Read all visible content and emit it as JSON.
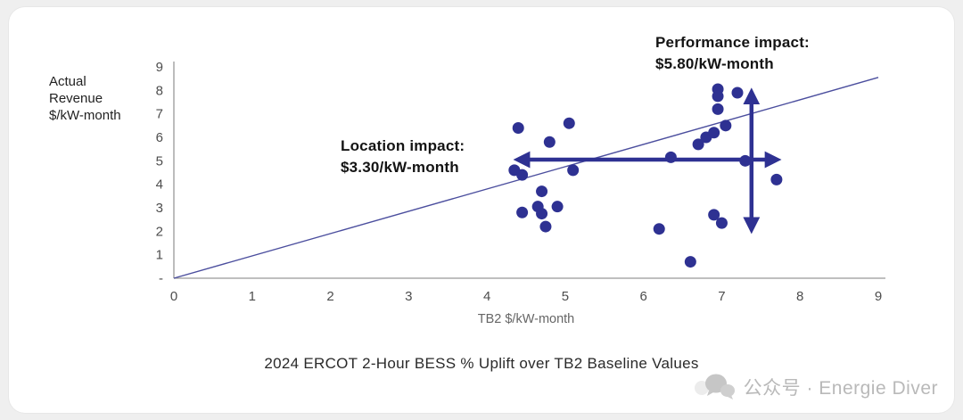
{
  "page": {
    "watermark": "公众号 · Energie Diver"
  },
  "chart_data": {
    "type": "scatter",
    "title": "2024 ERCOT 2-Hour BESS % Uplift over TB2 Baseline Values",
    "xlabel": "TB2 $/kW-month",
    "ylabel": "Actual\nRevenue\n$/kW-month",
    "xlim": [
      0,
      9
    ],
    "ylim": [
      0,
      9
    ],
    "x_ticks": [
      0,
      1,
      2,
      3,
      4,
      5,
      6,
      7,
      8,
      9
    ],
    "y_tick_labels": [
      "-",
      "1",
      "2",
      "3",
      "4",
      "5",
      "6",
      "7",
      "8",
      "9"
    ],
    "point_color": "#2e3192",
    "axis_color": "#999999",
    "points": [
      [
        4.4,
        6.4
      ],
      [
        4.35,
        4.6
      ],
      [
        4.45,
        4.4
      ],
      [
        4.45,
        2.8
      ],
      [
        4.65,
        3.05
      ],
      [
        4.7,
        3.7
      ],
      [
        4.7,
        2.75
      ],
      [
        4.75,
        2.2
      ],
      [
        4.8,
        5.8
      ],
      [
        4.9,
        3.05
      ],
      [
        5.05,
        6.6
      ],
      [
        5.1,
        4.6
      ],
      [
        6.2,
        2.1
      ],
      [
        6.35,
        5.15
      ],
      [
        6.6,
        0.7
      ],
      [
        6.7,
        5.7
      ],
      [
        6.8,
        6.0
      ],
      [
        6.9,
        2.7
      ],
      [
        6.9,
        6.2
      ],
      [
        6.95,
        8.05
      ],
      [
        6.95,
        7.75
      ],
      [
        6.95,
        7.2
      ],
      [
        7.0,
        2.35
      ],
      [
        7.05,
        6.5
      ],
      [
        7.2,
        7.9
      ],
      [
        7.3,
        5.0
      ],
      [
        7.7,
        4.2
      ]
    ],
    "reference_line": {
      "from": [
        0,
        0
      ],
      "to": [
        9,
        8.55
      ],
      "color": "#4b4e9e"
    },
    "annotations": [
      {
        "id": "location-impact",
        "text": "Location impact:\n$3.30/kW-month",
        "arrow": {
          "type": "horizontal",
          "y": 5.05,
          "x1": 4.4,
          "x2": 7.7
        }
      },
      {
        "id": "performance-impact",
        "text": "Performance impact:\n$5.80/kW-month",
        "arrow": {
          "type": "vertical",
          "x": 7.38,
          "y1": 2.1,
          "y2": 7.9
        }
      }
    ],
    "legend": "none",
    "grid": false
  }
}
